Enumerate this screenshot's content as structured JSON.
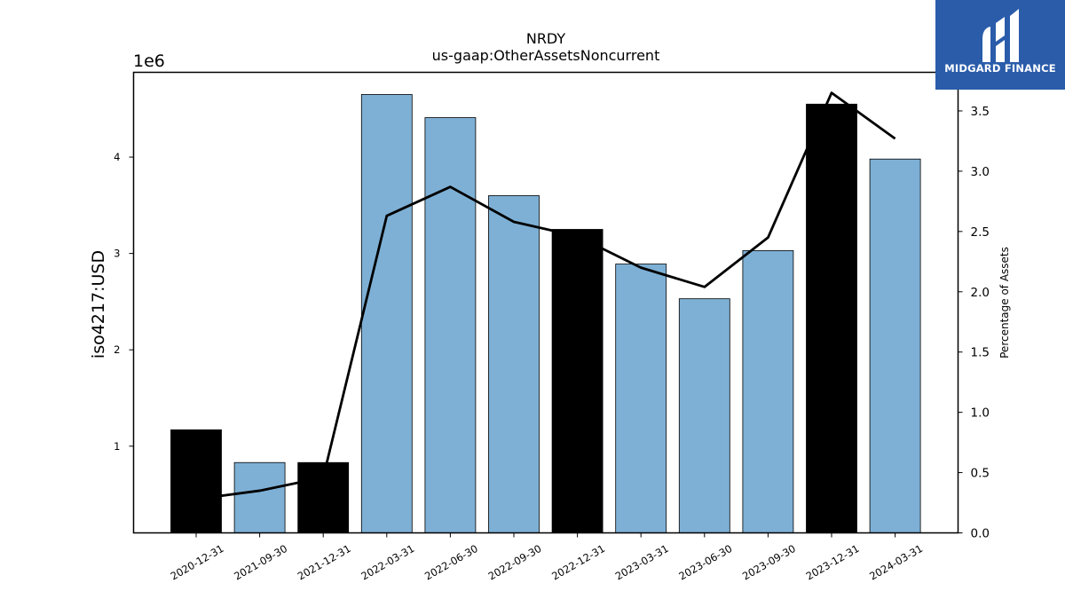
{
  "chart_data": {
    "type": "bar",
    "title": "NRDY",
    "subtitle": "us-gaap:OtherAssetsNoncurrent",
    "ylabel": "iso4217:USD",
    "y_offset_label": "1e6",
    "y2label": "Percentage of Assets",
    "categories": [
      "2020-12-31",
      "2021-09-30",
      "2021-12-31",
      "2022-03-31",
      "2022-06-30",
      "2022-09-30",
      "2022-12-31",
      "2023-03-31",
      "2023-06-30",
      "2023-09-30",
      "2023-12-31",
      "2024-03-31"
    ],
    "values": [
      1.17,
      0.83,
      0.83,
      4.65,
      4.41,
      3.6,
      3.25,
      2.89,
      2.53,
      3.03,
      4.55,
      3.98
    ],
    "highlight": [
      true,
      false,
      true,
      false,
      false,
      false,
      true,
      false,
      false,
      false,
      true,
      false
    ],
    "line_values": [
      0.28,
      0.35,
      0.46,
      2.63,
      2.87,
      2.58,
      2.46,
      2.2,
      2.04,
      2.45,
      3.65,
      3.27
    ],
    "ylim": [
      0.1,
      4.88
    ],
    "y2lim": [
      0,
      3.82
    ],
    "yticks": [
      1,
      2,
      3,
      4
    ],
    "y2ticks": [
      "0.0",
      "0.5",
      "1.0",
      "1.5",
      "2.0",
      "2.5",
      "3.0",
      "3.5"
    ],
    "grid": false,
    "colors": {
      "bar": "#7eb0d5",
      "highlight": "#000000",
      "line": "#000000"
    }
  },
  "logo": {
    "text": "MIDGARD FINANCE",
    "background": "#2a5caa"
  }
}
